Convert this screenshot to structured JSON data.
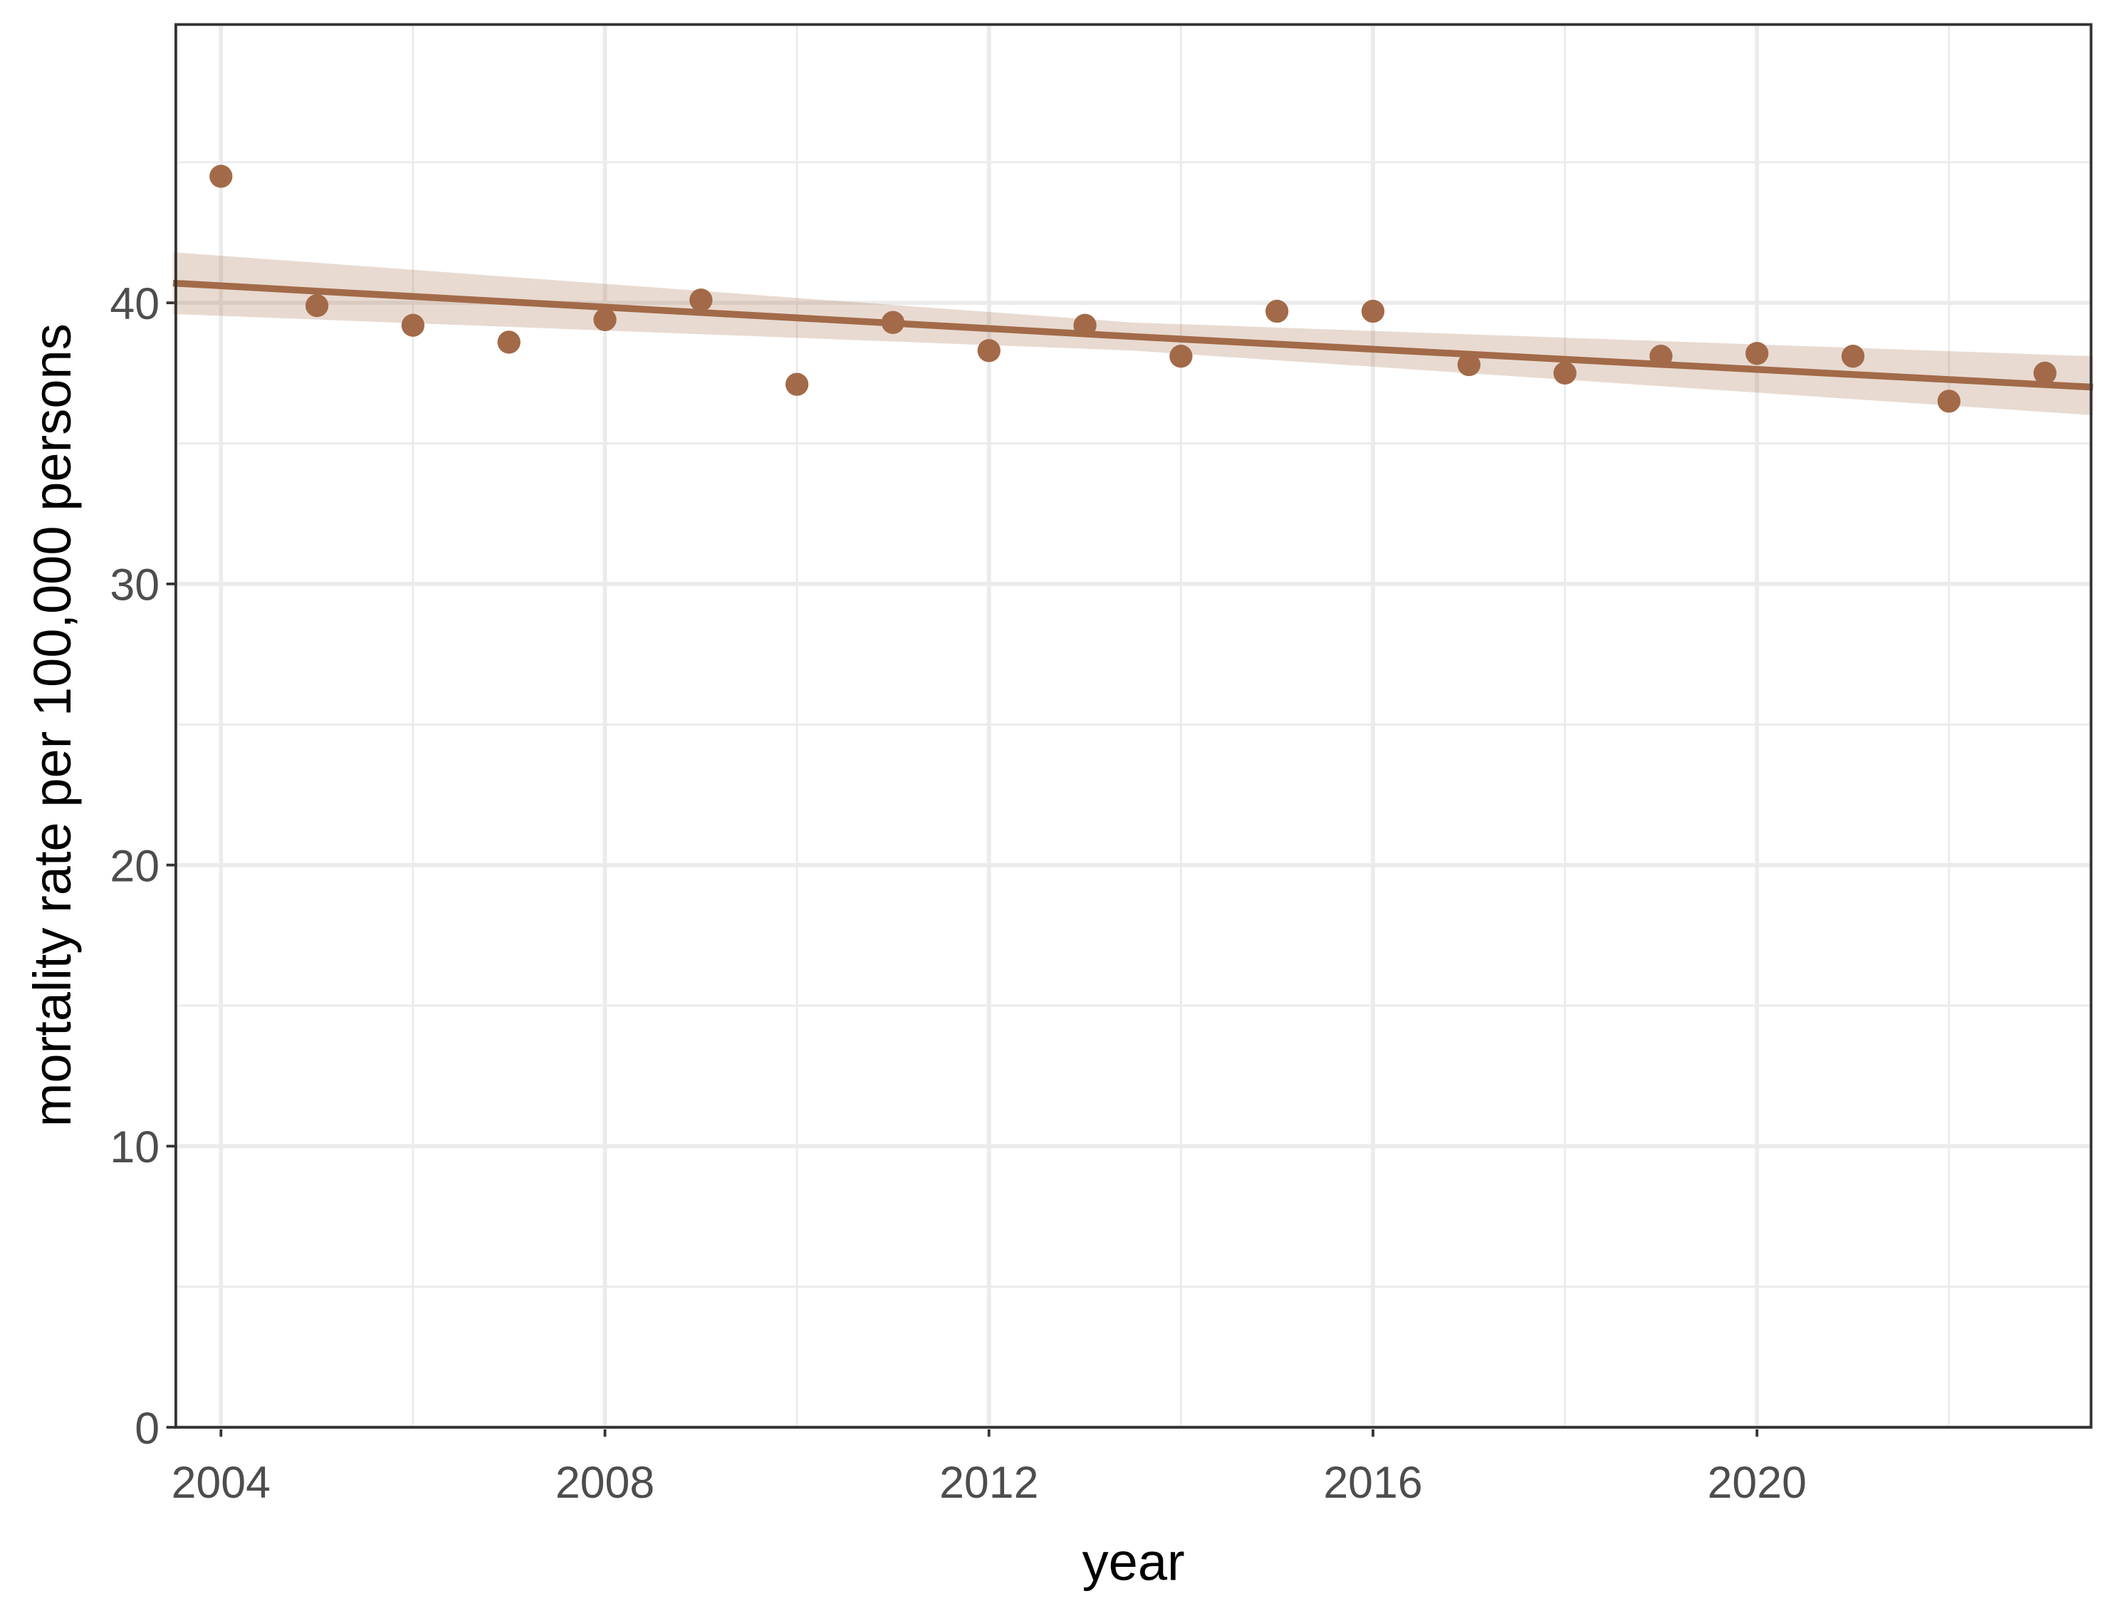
{
  "chart_data": {
    "type": "scatter",
    "x_label": "year",
    "y_label": "mortality rate per 100,000 persons",
    "x": [
      2004,
      2005,
      2006,
      2007,
      2008,
      2009,
      2010,
      2011,
      2012,
      2013,
      2014,
      2015,
      2016,
      2017,
      2018,
      2019,
      2020,
      2021,
      2022,
      2023
    ],
    "values": [
      44.5,
      39.9,
      39.2,
      38.6,
      39.4,
      40.1,
      37.1,
      39.3,
      38.3,
      39.2,
      38.1,
      39.7,
      39.7,
      37.8,
      37.5,
      38.1,
      38.2,
      38.1,
      36.5,
      37.5
    ],
    "color": "#a26a48",
    "fit": {
      "x": [
        2003.5,
        2013.5,
        2023.5
      ],
      "values": [
        40.7,
        38.8,
        37.0
      ],
      "lower": [
        39.6,
        38.3,
        36.0
      ],
      "upper": [
        41.8,
        39.3,
        38.1
      ],
      "color": "#a26a48"
    },
    "xlim": [
      2003.53,
      2023.48
    ],
    "ylim": [
      0,
      49.9
    ],
    "xticks": [
      2004,
      2008,
      2012,
      2016,
      2020
    ],
    "yticks": [
      0,
      10,
      20,
      30,
      40
    ],
    "grid": true,
    "minor_grid": true
  }
}
